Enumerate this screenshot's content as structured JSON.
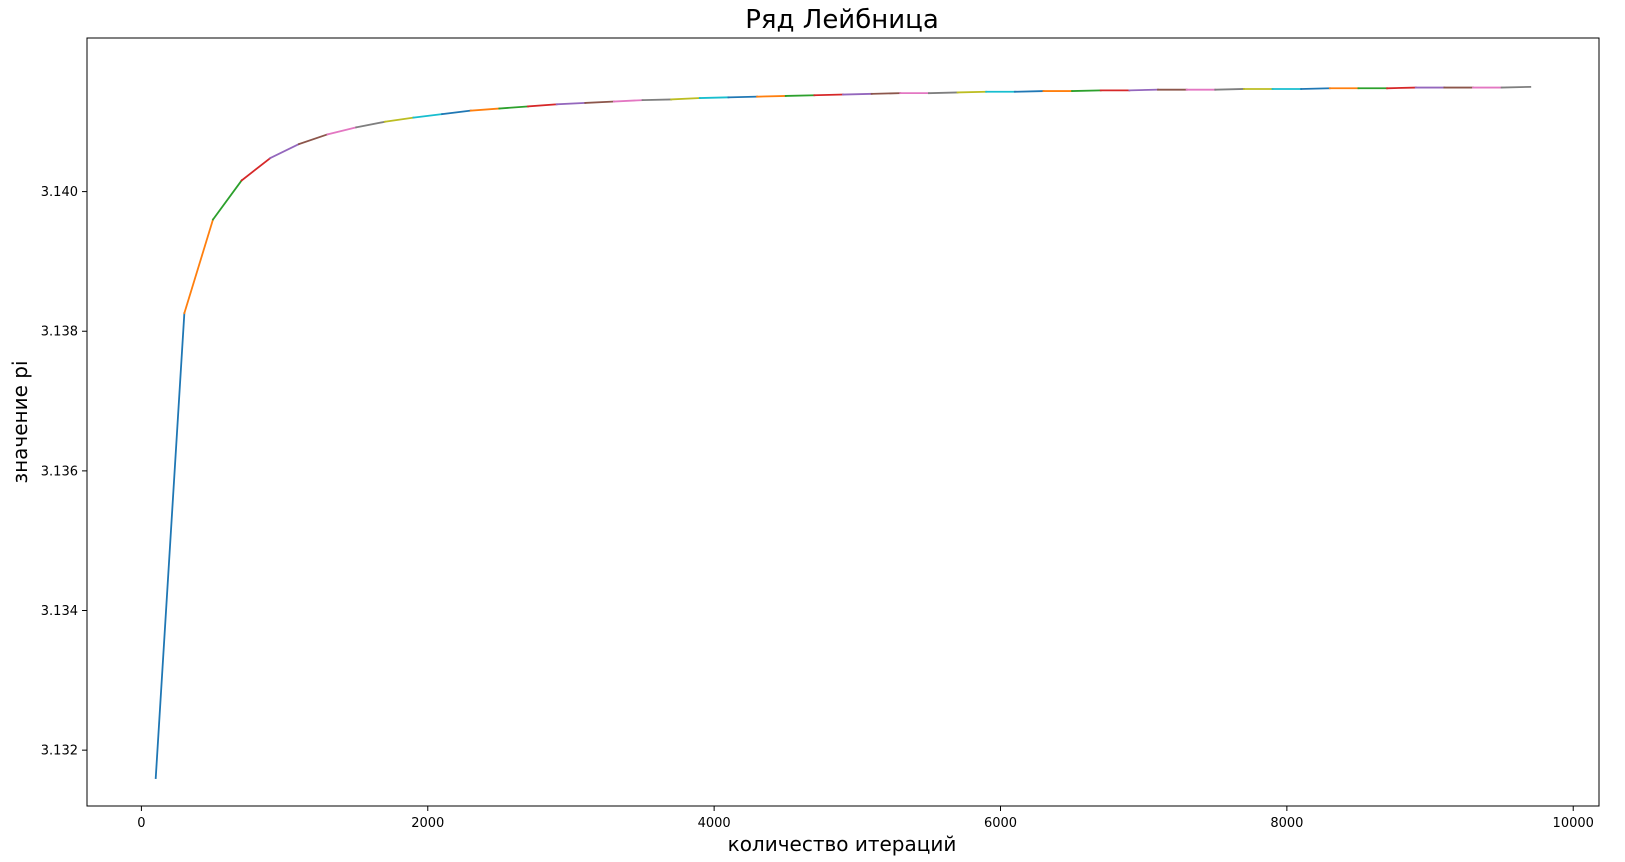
{
  "chart_data": {
    "type": "line",
    "title": "Ряд Лейбница",
    "xlabel": "количество итераций",
    "ylabel": "значение pi",
    "xlim": [
      -380,
      10180
    ],
    "ylim": [
      3.1312,
      3.1422
    ],
    "xticks": [
      0,
      2000,
      4000,
      6000,
      8000,
      10000
    ],
    "xtick_labels": [
      "0",
      "2000",
      "4000",
      "6000",
      "8000",
      "10000"
    ],
    "yticks": [
      3.132,
      3.134,
      3.136,
      3.138,
      3.14
    ],
    "ytick_labels": [
      "3.132",
      "3.134",
      "3.136",
      "3.138",
      "3.140"
    ],
    "grid": false,
    "legend": "none",
    "colors": [
      "#1f77b4",
      "#ff7f0e",
      "#2ca02c",
      "#d62728",
      "#9467bd",
      "#8c564b",
      "#e377c2",
      "#7f7f7f",
      "#bcbd22",
      "#17becf"
    ],
    "x": [
      100,
      300,
      500,
      700,
      900,
      1100,
      1300,
      1500,
      1700,
      1900,
      2100,
      2300,
      2500,
      2700,
      2900,
      3100,
      3300,
      3500,
      3700,
      3900,
      4100,
      4300,
      4500,
      4700,
      4900,
      5100,
      5300,
      5500,
      5700,
      5900,
      6100,
      6300,
      6500,
      6700,
      6900,
      7100,
      7300,
      7500,
      7700,
      7900,
      8100,
      8300,
      8500,
      8700,
      8900,
      9100,
      9300,
      9500,
      9700
    ],
    "y": [
      3.1316,
      3.13826,
      3.1396,
      3.14016,
      3.14048,
      3.14068,
      3.14082,
      3.14092,
      3.141,
      3.14106,
      3.14111,
      3.14116,
      3.14119,
      3.14122,
      3.14125,
      3.14127,
      3.14129,
      3.14131,
      3.14132,
      3.14134,
      3.14135,
      3.14136,
      3.14137,
      3.14138,
      3.14139,
      3.1414,
      3.14141,
      3.14141,
      3.14142,
      3.14143,
      3.14143,
      3.14144,
      3.14144,
      3.14145,
      3.14145,
      3.14146,
      3.14146,
      3.14146,
      3.14147,
      3.14147,
      3.14147,
      3.14148,
      3.14148,
      3.14148,
      3.14149,
      3.14149,
      3.14149,
      3.14149,
      3.1415
    ]
  }
}
